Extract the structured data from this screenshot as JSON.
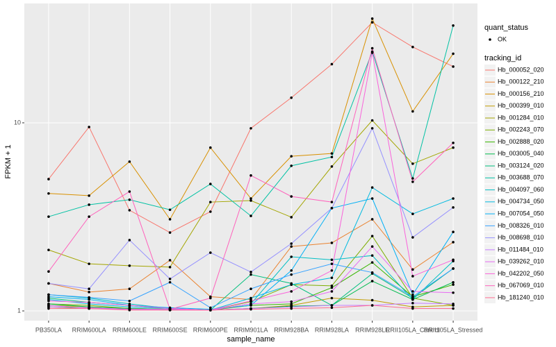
{
  "chart_data": {
    "type": "line",
    "x_label": "sample_name",
    "y_label": "FPKM + 1",
    "log_y": true,
    "grid": true,
    "legend": "right",
    "categories": [
      "PB350LA",
      "RRIM600LA",
      "RRIM600LE",
      "RRIM600SE",
      "RRIM600PE",
      "RRIM901LA",
      "RRIM928BA",
      "RRIM928LA",
      "RRIM928LE",
      "RRII105LA_Control",
      "RRII105LA_Stressed"
    ],
    "ylim": [
      0.888,
      43.1
    ],
    "yticks": [
      1,
      10
    ],
    "point_legend": {
      "title": "quant_status",
      "items": [
        "OK"
      ],
      "color": "#000000"
    },
    "series_legend_title": "tracking_id",
    "series": [
      {
        "name": "Hb_000052_020",
        "color": "#F8766D",
        "values": [
          5.02,
          9.5,
          3.43,
          2.61,
          3.37,
          9.35,
          13.6,
          20.5,
          34.2,
          25.3,
          19.9
        ]
      },
      {
        "name": "Hb_000122_210",
        "color": "#EA8331",
        "values": [
          1.4,
          1.26,
          1.31,
          1.86,
          1.19,
          1.15,
          2.2,
          2.3,
          3.07,
          1.66,
          2.32
        ]
      },
      {
        "name": "Hb_000156_210",
        "color": "#D89000",
        "values": [
          4.21,
          4.1,
          6.22,
          3.07,
          7.38,
          3.96,
          6.64,
          6.87,
          35.8,
          11.5,
          23.3
        ]
      },
      {
        "name": "Hb_000399_010",
        "color": "#C09B00",
        "values": [
          1.07,
          1.05,
          1.03,
          1.02,
          1.01,
          1.03,
          1.07,
          1.17,
          1.14,
          1.05,
          1.07
        ]
      },
      {
        "name": "Hb_001284_010",
        "color": "#A3A500",
        "values": [
          2.11,
          1.78,
          1.74,
          1.71,
          3.79,
          3.86,
          3.15,
          5.86,
          10.3,
          6.06,
          7.38
        ]
      },
      {
        "name": "Hb_002243_070",
        "color": "#7CAE00",
        "values": [
          1.09,
          1.07,
          1.03,
          1.02,
          1.01,
          1.12,
          1.38,
          1.36,
          2.5,
          1.17,
          1.07
        ]
      },
      {
        "name": "Hb_002888_020",
        "color": "#39B600",
        "values": [
          1.05,
          1.03,
          1.02,
          1.01,
          1.01,
          1.07,
          1.09,
          1.33,
          1.81,
          1.19,
          1.38
        ]
      },
      {
        "name": "Hb_003005_040",
        "color": "#00BB4E",
        "values": [
          1.09,
          1.05,
          1.03,
          1.02,
          1.01,
          1.03,
          1.06,
          1.07,
          1.44,
          1.15,
          1.42
        ]
      },
      {
        "name": "Hb_003124_020",
        "color": "#00BF7D",
        "values": [
          1.17,
          1.11,
          1.07,
          1.03,
          1.01,
          1.56,
          1.4,
          1.07,
          1.58,
          1.17,
          1.68
        ]
      },
      {
        "name": "Hb_003688_070",
        "color": "#00C1A3",
        "values": [
          3.17,
          3.67,
          3.9,
          3.45,
          4.73,
          3.2,
          5.91,
          6.58,
          23.9,
          5.06,
          32.9
        ]
      },
      {
        "name": "Hb_004097_060",
        "color": "#00BFC4",
        "values": [
          1.22,
          1.17,
          1.09,
          1.03,
          1.01,
          1.09,
          1.94,
          1.87,
          1.97,
          1.15,
          1.84
        ]
      },
      {
        "name": "Hb_004734_050",
        "color": "#00BAE0",
        "values": [
          1.15,
          1.09,
          1.05,
          1.03,
          1.01,
          1.17,
          1.38,
          1.5,
          4.53,
          3.28,
          3.96
        ]
      },
      {
        "name": "Hb_007054_050",
        "color": "#00B0F6",
        "values": [
          1.19,
          1.15,
          1.07,
          1.04,
          1.02,
          1.07,
          1.64,
          3.52,
          3.96,
          1.22,
          2.63
        ]
      },
      {
        "name": "Hb_008326_010",
        "color": "#35A2FF",
        "values": [
          1.22,
          1.18,
          1.13,
          1.42,
          1.04,
          1.31,
          1.56,
          1.78,
          1.6,
          1.19,
          1.68
        ]
      },
      {
        "name": "Hb_008698_010",
        "color": "#9590FF",
        "values": [
          1.4,
          1.31,
          2.38,
          1.48,
          2.04,
          1.61,
          2.28,
          3.52,
          9.35,
          2.46,
          3.55
        ]
      },
      {
        "name": "Hb_011484_010",
        "color": "#C77CFF",
        "values": [
          1.07,
          1.03,
          1.02,
          1.01,
          1.01,
          1.03,
          1.05,
          1.07,
          1.07,
          1.1,
          1.09
        ]
      },
      {
        "name": "Hb_039262_010",
        "color": "#E76BF3",
        "values": [
          1.05,
          1.04,
          1.02,
          1.02,
          1.01,
          1.09,
          1.12,
          1.27,
          2.2,
          1.27,
          1.25
        ]
      },
      {
        "name": "Hb_042202_050",
        "color": "#FA62DB",
        "values": [
          1.13,
          1.11,
          1.07,
          1.03,
          1.01,
          1.13,
          1.27,
          1.64,
          23.6,
          1.53,
          1.87
        ]
      },
      {
        "name": "Hb_067069_010",
        "color": "#FF62BC",
        "values": [
          1.62,
          3.17,
          4.31,
          1.02,
          1.17,
          5.25,
          4.06,
          3.79,
          24.9,
          4.86,
          7.82
        ]
      },
      {
        "name": "Hb_181240_010",
        "color": "#FF6C91",
        "values": [
          1.03,
          1.03,
          1.01,
          1.01,
          1.01,
          1.02,
          1.03,
          1.04,
          1.07,
          1.03,
          1.03
        ]
      }
    ]
  }
}
